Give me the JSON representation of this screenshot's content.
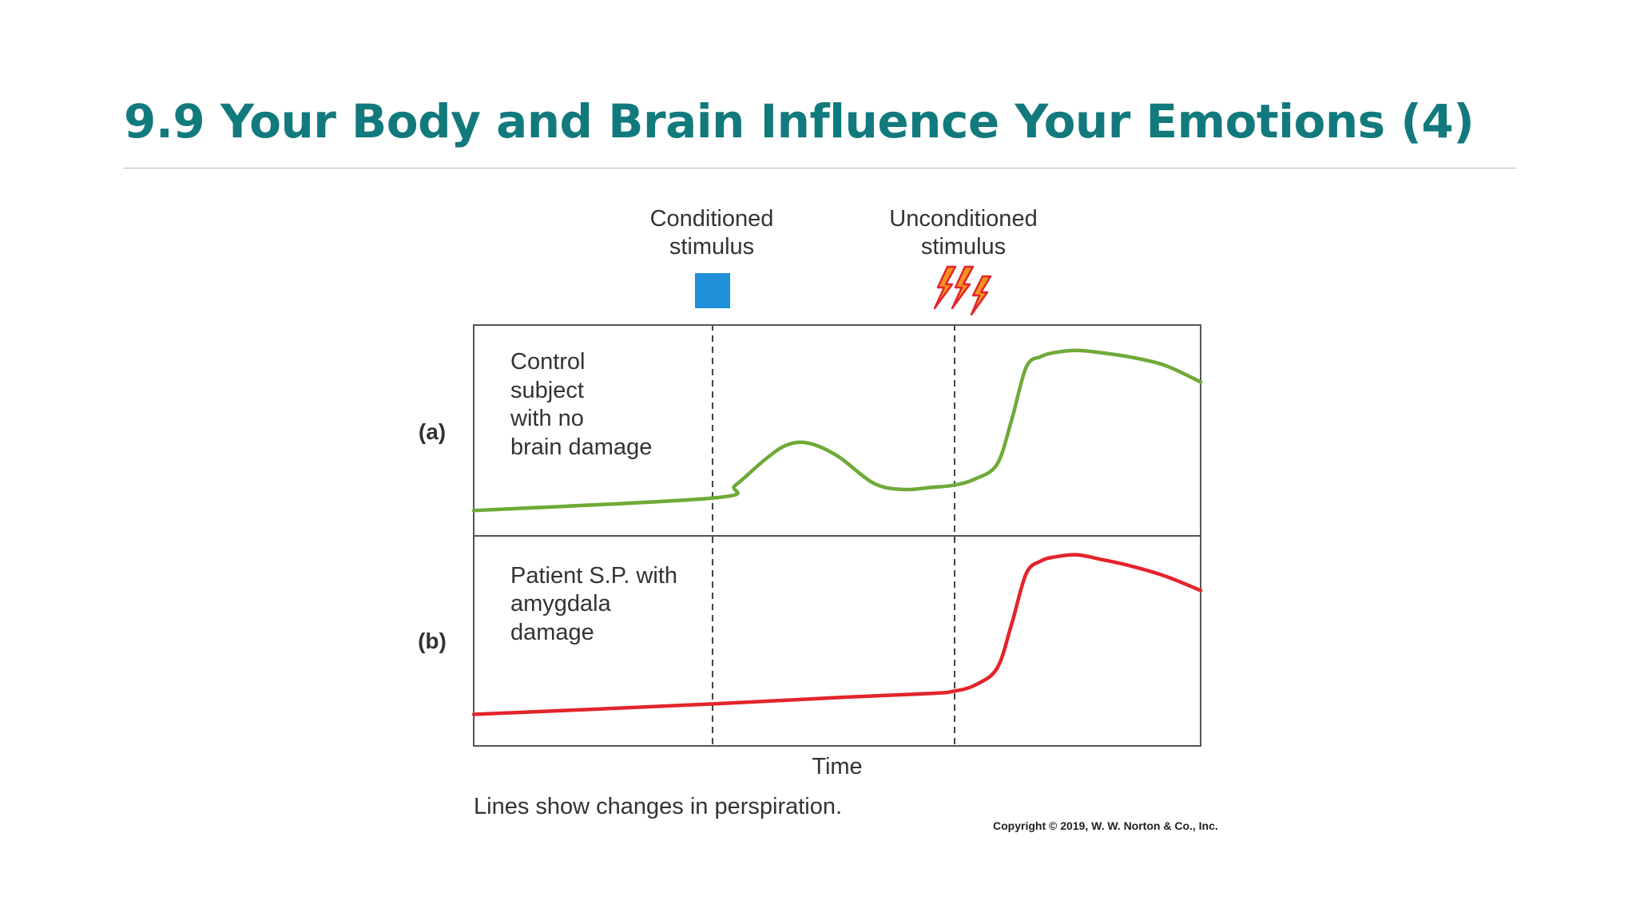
{
  "slide": {
    "title": "9.9 Your Body and Brain Influence Your Emotions (4)"
  },
  "colors": {
    "title": "#127a7d",
    "control_line": "#6faa38",
    "patient_line": "#e3242b",
    "cs_square": "#1e8fd8",
    "bolt_fill": "#f7931e",
    "bolt_stroke": "#e3242b"
  },
  "figure": {
    "cs_label_line1": "Conditioned",
    "cs_label_line2": "stimulus",
    "us_label_line1": "Unconditioned",
    "us_label_line2": "stimulus",
    "cs_icon": "blue-square-icon",
    "us_icon": "lightning-bolt-icon",
    "panel_a": {
      "letter": "(a)",
      "label_lines": [
        "Control",
        "subject",
        "with no",
        "brain damage"
      ]
    },
    "panel_b": {
      "letter": "(b)",
      "label_lines": [
        "Patient S.P. with",
        "amygdala",
        "damage"
      ]
    },
    "xlabel": "Time",
    "caption": "Lines show changes in perspiration.",
    "copyright": "Copyright © 2019, W. W. Norton & Co., Inc."
  },
  "chart_data": {
    "type": "line",
    "title": "",
    "xlabel": "Time",
    "ylabel": "",
    "xlim": [
      0,
      100
    ],
    "ylim": [
      0,
      100
    ],
    "grid": false,
    "legend": "none",
    "events": [
      {
        "name": "Conditioned stimulus",
        "x": 33
      },
      {
        "name": "Unconditioned stimulus",
        "x": 66
      }
    ],
    "panels": [
      {
        "id": "a",
        "series_color": "#6faa38",
        "x": [
          0,
          33,
          36,
          40,
          43,
          46,
          50,
          55,
          59,
          63,
          66,
          69,
          72,
          74,
          76,
          78,
          80,
          83,
          86,
          90,
          95,
          100
        ],
        "y": [
          12,
          18,
          24,
          36,
          43,
          44,
          38,
          25,
          22,
          23,
          24,
          27,
          34,
          55,
          80,
          85,
          87,
          88,
          87,
          85,
          81,
          73
        ]
      },
      {
        "id": "b",
        "series_color": "#e3242b",
        "x": [
          0,
          33,
          50,
          63,
          66,
          69,
          72,
          74,
          76,
          78,
          80,
          83,
          86,
          90,
          95,
          100
        ],
        "y": [
          15,
          20,
          23,
          25,
          26,
          29,
          37,
          58,
          82,
          88,
          90,
          91,
          89,
          86,
          81,
          74
        ]
      }
    ]
  }
}
